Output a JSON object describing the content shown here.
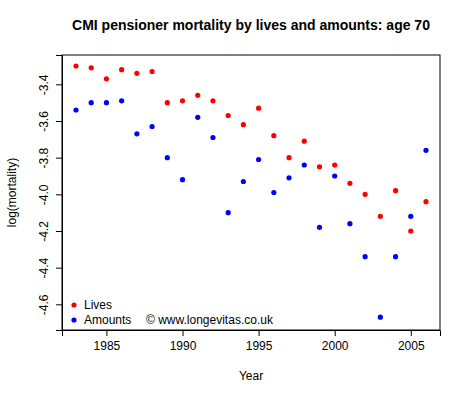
{
  "chart_data": {
    "type": "scatter",
    "title": "CMI pensioner mortality by lives and amounts: age 70",
    "x_label": "Year",
    "y_label": "log(mortality)",
    "annotations": [
      "© www.longevitas.co.uk"
    ],
    "x": [
      1983,
      1984,
      1985,
      1986,
      1987,
      1988,
      1989,
      1990,
      1991,
      1992,
      1993,
      1994,
      1995,
      1996,
      1997,
      1998,
      1999,
      2000,
      2001,
      2002,
      2003,
      2004,
      2005,
      2006
    ],
    "series": [
      {
        "name": "Lives",
        "color": "#ff0000",
        "marker": "circle",
        "values": [
          -3.3,
          -3.31,
          -3.37,
          -3.32,
          -3.34,
          -3.33,
          -3.5,
          -3.49,
          -3.46,
          -3.49,
          -3.57,
          -3.62,
          -3.53,
          -3.68,
          -3.8,
          -3.71,
          -3.85,
          -3.84,
          -3.94,
          -4.0,
          -4.12,
          -3.98,
          -4.2,
          -4.04
        ]
      },
      {
        "name": "Amounts",
        "color": "#0000ff",
        "marker": "circle",
        "values": [
          -3.54,
          -3.5,
          -3.5,
          -3.49,
          -3.67,
          -3.63,
          -3.8,
          -3.92,
          -3.58,
          -3.69,
          -4.1,
          -3.93,
          -3.81,
          -3.99,
          -3.91,
          -3.84,
          -4.18,
          -3.9,
          -4.16,
          -4.34,
          -4.67,
          -4.34,
          -4.12,
          -3.76
        ]
      }
    ],
    "xlim": [
      1982.08,
      2006.92
    ],
    "xticks": [
      1985,
      1990,
      1995,
      2000,
      2005
    ],
    "ylim": [
      -4.74,
      -3.24
    ],
    "yticks": [
      {
        "value": -4.6,
        "label": "-4.6"
      },
      {
        "value": -4.4,
        "label": "-4.4"
      },
      {
        "value": -4.2,
        "label": "-4.2"
      },
      {
        "value": -4.0,
        "label": "-4.0"
      },
      {
        "value": -3.8,
        "label": "-3.8"
      },
      {
        "value": -3.6,
        "label": "-3.6"
      },
      {
        "value": -3.4,
        "label": "-3.4"
      }
    ],
    "grid": false,
    "legend": "bottom-left"
  }
}
